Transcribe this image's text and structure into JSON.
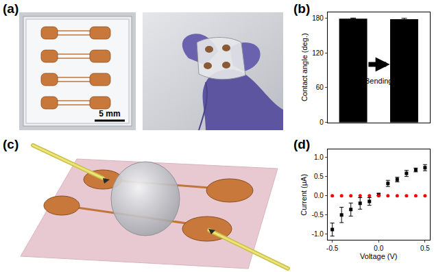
{
  "panel_labels": [
    "(a)",
    "(b)",
    "(c)",
    "(d)"
  ],
  "scale_bar": "5 mm",
  "chart_data": [
    {
      "type": "bar",
      "categories": [
        null,
        null
      ],
      "values": [
        179,
        178
      ],
      "errors": [
        1,
        1.5
      ],
      "color": "#000000",
      "y_label": "Contact angle (deg.)",
      "ylim": [
        0,
        190
      ],
      "yticks": [
        0,
        60,
        120,
        180
      ],
      "annotations": [
        "Bending"
      ],
      "tick_labels": "y",
      "grid": false
    },
    {
      "type": "scatter",
      "x_label": "Voltage (V)",
      "y_label": "Current (μA)",
      "x": [
        -0.5,
        -0.4,
        -0.3,
        -0.2,
        -0.1,
        0,
        0.1,
        0.2,
        0.3,
        0.4,
        0.5
      ],
      "xlim": [
        -0.55,
        0.55
      ],
      "xticks": [
        -0.5,
        {
          "value": 0,
          "label": "0.0"
        },
        0.5
      ],
      "ylim": [
        -1.15,
        1.2
      ],
      "yticks": [
        {
          "value": -1,
          "label": "-1.0"
        },
        -0.5,
        {
          "value": 0,
          "label": "0.0"
        },
        0.5,
        {
          "value": 1,
          "label": "1.0"
        }
      ],
      "grid": false,
      "series": [
        {
          "color": "#000000",
          "marker": "square",
          "values": [
            -0.88,
            -0.5,
            -0.36,
            -0.2,
            -0.15,
            0.03,
            0.32,
            0.42,
            0.58,
            0.67,
            0.73
          ],
          "errors": [
            0.17,
            0.2,
            0.17,
            0.15,
            0.1,
            0.03,
            0.08,
            0.06,
            0.08,
            0.05,
            0.08
          ]
        },
        {
          "color": "#ff0000",
          "marker": "circle",
          "values": [
            0,
            0,
            0,
            0,
            0,
            0,
            0,
            0,
            0,
            0,
            0
          ]
        }
      ]
    }
  ]
}
